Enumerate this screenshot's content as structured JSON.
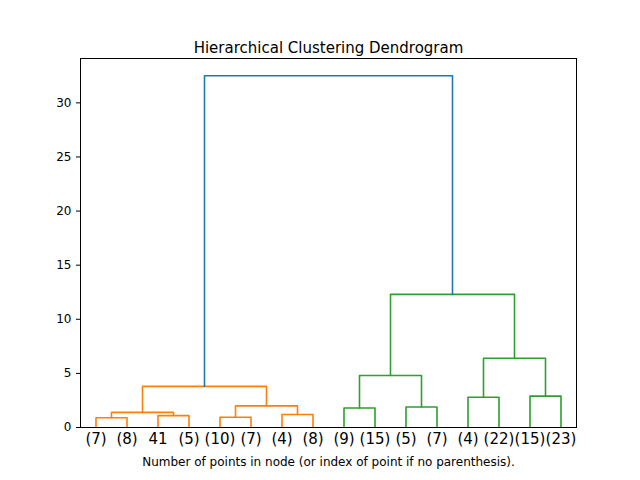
{
  "chart_data": {
    "type": "dendrogram",
    "title": "Hierarchical Clustering Dendrogram",
    "x_label": "Number of points in node (or index of point if no parenthesis).",
    "leaf_labels": [
      "(7)",
      "(8)",
      "41",
      "(5)",
      "(10)",
      "(7)",
      "(4)",
      "(8)",
      "(9)",
      "(15)",
      "(5)",
      "(7)",
      "(4)",
      "(22)",
      "(15)",
      "(23)"
    ],
    "merges": [
      {
        "children": [
          0,
          1
        ],
        "height": 0.9,
        "color": "#ff7f0e"
      },
      {
        "children": [
          2,
          3
        ],
        "height": 1.1,
        "color": "#ff7f0e"
      },
      {
        "children": [
          16,
          17
        ],
        "height": 1.4,
        "color": "#ff7f0e"
      },
      {
        "children": [
          4,
          5
        ],
        "height": 0.95,
        "color": "#ff7f0e"
      },
      {
        "children": [
          6,
          7
        ],
        "height": 1.2,
        "color": "#ff7f0e"
      },
      {
        "children": [
          19,
          20
        ],
        "height": 2.0,
        "color": "#ff7f0e"
      },
      {
        "children": [
          18,
          21
        ],
        "height": 3.8,
        "color": "#ff7f0e"
      },
      {
        "children": [
          8,
          9
        ],
        "height": 1.8,
        "color": "#2ca02c"
      },
      {
        "children": [
          10,
          11
        ],
        "height": 1.9,
        "color": "#2ca02c"
      },
      {
        "children": [
          23,
          24
        ],
        "height": 4.8,
        "color": "#2ca02c"
      },
      {
        "children": [
          12,
          13
        ],
        "height": 2.8,
        "color": "#2ca02c"
      },
      {
        "children": [
          14,
          15
        ],
        "height": 2.9,
        "color": "#2ca02c"
      },
      {
        "children": [
          26,
          27
        ],
        "height": 6.4,
        "color": "#2ca02c"
      },
      {
        "children": [
          25,
          28
        ],
        "height": 12.3,
        "color": "#2ca02c"
      },
      {
        "children": [
          22,
          29
        ],
        "height": 32.5,
        "color": "#1f77b4"
      }
    ],
    "ylim": [
      0,
      34.1
    ],
    "yticks": [
      0,
      5,
      10,
      15,
      20,
      25,
      30
    ]
  }
}
